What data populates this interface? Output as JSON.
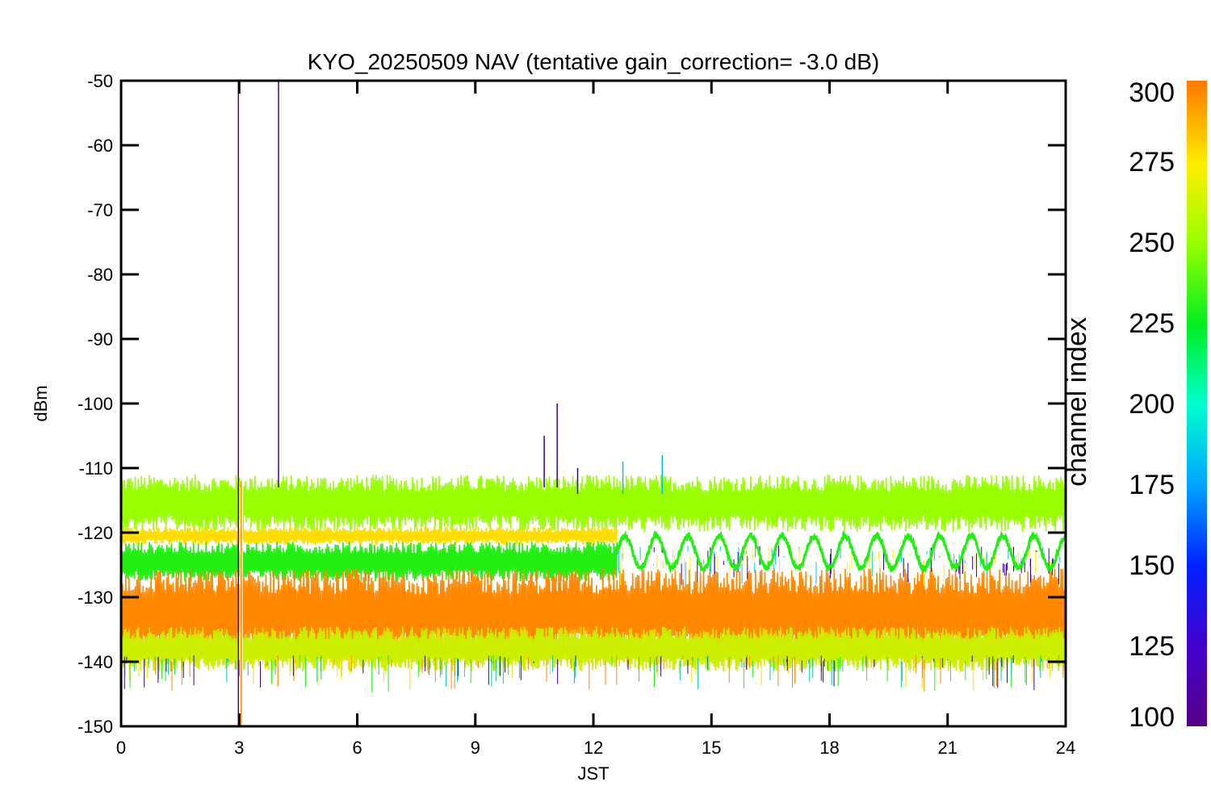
{
  "chart_data": {
    "type": "line",
    "title": "KYO_20250509 NAV (tentative gain_correction= -3.0 dB)",
    "xlabel": "JST",
    "ylabel": "dBm",
    "xlim": [
      0,
      24
    ],
    "ylim": [
      -150,
      -50
    ],
    "xticks": [
      0,
      3,
      6,
      9,
      12,
      15,
      18,
      21,
      24
    ],
    "yticks": [
      -50,
      -60,
      -70,
      -80,
      -90,
      -100,
      -110,
      -120,
      -130,
      -140,
      -150
    ],
    "grid": false,
    "colorbar": {
      "label": "channel index",
      "range": [
        100,
        300
      ],
      "ticks": [
        300,
        275,
        250,
        225,
        200,
        175,
        150,
        125,
        100
      ],
      "colormap": "rainbow"
    },
    "bands": [
      {
        "channel": 260,
        "color": "#99ff00",
        "center": -115.5,
        "halfwidth": 3.2,
        "t_start": 0,
        "t_end": 24
      },
      {
        "channel": 275,
        "color": "#ffdd00",
        "center": -120.5,
        "halfwidth": 1.0,
        "t_start": 0,
        "t_end": 12.6
      },
      {
        "channel": 230,
        "color": "#22ee11",
        "center": -124.5,
        "halfwidth": 2.2,
        "t_start": 0,
        "t_end": 12.6
      },
      {
        "channel": 285,
        "color": "#ff8800",
        "center": -132.5,
        "halfwidth": 5.0,
        "t_start": 0,
        "t_end": 24
      },
      {
        "channel": 265,
        "color": "#ccee00",
        "center": -138.0,
        "halfwidth": 2.5,
        "t_start": 0,
        "t_end": 24
      }
    ],
    "oscillating_series": {
      "channel": 230,
      "color": "#22ee11",
      "center": -123.0,
      "amplitude": 2.5,
      "period_hours": 0.8,
      "t_start": 12.6,
      "t_end": 24
    },
    "spikes": [
      {
        "x": 2.98,
        "y_top": -50,
        "y_bottom": -150,
        "color": "#550088"
      },
      {
        "x": 4.0,
        "y_top": -50,
        "y_bottom": -113,
        "color": "#550088"
      },
      {
        "x": 11.08,
        "y_top": -100,
        "y_bottom": -113,
        "color": "#330099"
      },
      {
        "x": 10.75,
        "y_top": -105,
        "y_bottom": -113,
        "color": "#330099"
      },
      {
        "x": 11.6,
        "y_top": -110,
        "y_bottom": -114,
        "color": "#330099"
      },
      {
        "x": 12.75,
        "y_top": -109,
        "y_bottom": -114,
        "color": "#00bbee"
      },
      {
        "x": 13.75,
        "y_top": -108,
        "y_bottom": -114,
        "color": "#00bbee"
      },
      {
        "x": 3.05,
        "y_top": -112,
        "y_bottom": -150,
        "color": "#ff8800"
      }
    ],
    "data_gap": {
      "x": 3.05,
      "y_top": -113,
      "y_bottom": -142
    }
  }
}
